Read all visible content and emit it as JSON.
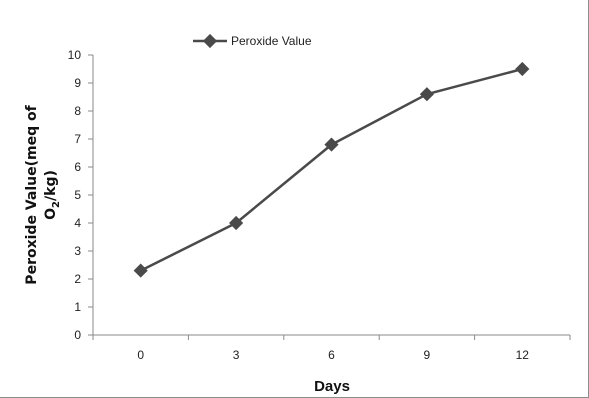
{
  "chart_data": {
    "type": "line",
    "categories": [
      "0",
      "3",
      "6",
      "9",
      "12"
    ],
    "series": [
      {
        "name": "Peroxide Value",
        "values": [
          2.3,
          4.0,
          6.8,
          8.6,
          9.5
        ]
      }
    ],
    "ylim": [
      0,
      10
    ],
    "yticks": [
      "0",
      "1",
      "2",
      "3",
      "4",
      "5",
      "6",
      "7",
      "8",
      "9",
      "10"
    ],
    "xlabel": "Days",
    "ylabel_line1": "Peroxide Value(meq of",
    "ylabel_line2_main": "O",
    "ylabel_line2_sub": "2",
    "ylabel_line2_tail": "/kg)",
    "legend_position": "top-left",
    "grid": false,
    "line_color": "#4a4a4a"
  }
}
